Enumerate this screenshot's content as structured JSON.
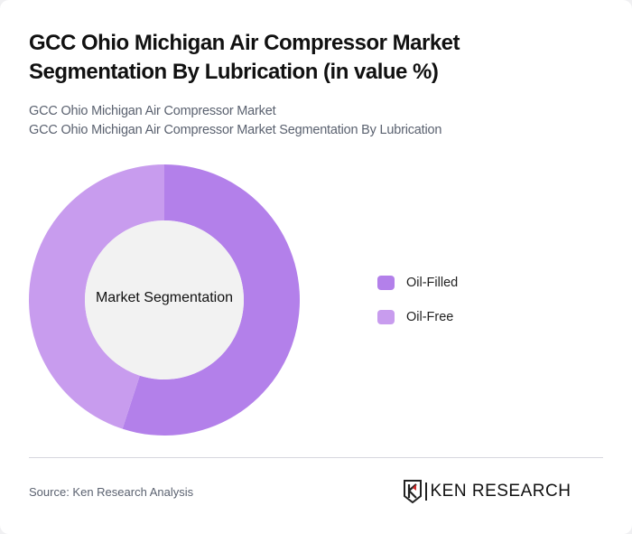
{
  "header": {
    "title": "GCC Ohio Michigan Air Compressor Market Segmentation By Lubrication (in value %)",
    "subtitle_line1": "GCC Ohio Michigan Air Compressor Market",
    "subtitle_line2": "GCC Ohio Michigan Air Compressor Market Segmentation By Lubrication"
  },
  "chart_data": {
    "type": "pie",
    "subtype": "donut",
    "title": "GCC Ohio Michigan Air Compressor Market Segmentation By Lubrication (in value %)",
    "center_label": "Market Segmentation",
    "categories": [
      "Oil-Filled",
      "Oil-Free"
    ],
    "values": [
      55,
      45
    ],
    "colors": [
      "#b380ea",
      "#c89cee"
    ],
    "legend_position": "right"
  },
  "legend": {
    "items": [
      {
        "label": "Oil-Filled",
        "color": "#b380ea"
      },
      {
        "label": "Oil-Free",
        "color": "#c89cee"
      }
    ]
  },
  "footer": {
    "source": "Source: Ken Research Analysis",
    "logo_text": "KEN RESEARCH",
    "logo_icon": "ken-research-shield-icon"
  }
}
